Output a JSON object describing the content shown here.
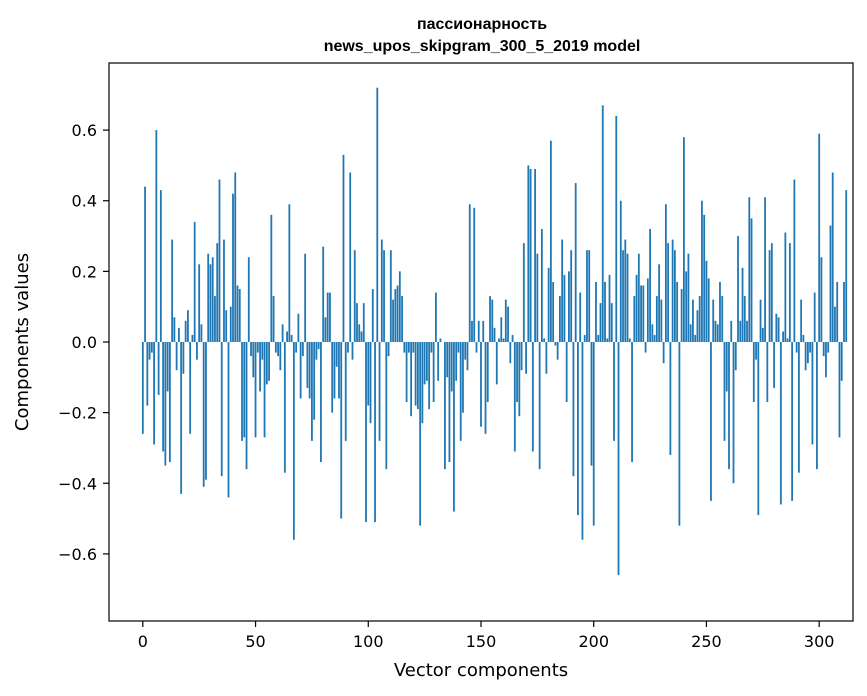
{
  "chart_data": {
    "type": "bar",
    "title": "пассионарность",
    "subtitle": "news_upos_skipgram_300_5_2019 model",
    "xlabel": "Vector components",
    "ylabel": "Components values",
    "xlim": [
      -15,
      315
    ],
    "ylim": [
      -0.79,
      0.79
    ],
    "xticks": [
      0,
      50,
      100,
      150,
      200,
      250,
      300
    ],
    "yticks": [
      -0.6,
      -0.4,
      -0.2,
      0.0,
      0.2,
      0.4,
      0.6
    ],
    "ytick_labels": [
      "−0.6",
      "−0.4",
      "−0.2",
      "0.0",
      "0.2",
      "0.4",
      "0.6"
    ],
    "grid": false,
    "bar_color": "#1f77b4",
    "values": [
      -0.26,
      0.44,
      -0.18,
      -0.05,
      -0.03,
      -0.29,
      0.6,
      -0.15,
      0.43,
      -0.31,
      -0.35,
      -0.14,
      -0.34,
      0.29,
      0.07,
      -0.08,
      0.04,
      -0.43,
      -0.09,
      0.06,
      0.09,
      -0.26,
      0.02,
      0.34,
      -0.05,
      0.22,
      0.05,
      -0.41,
      -0.39,
      0.25,
      0.22,
      0.24,
      0.13,
      0.28,
      0.46,
      -0.38,
      0.29,
      0.09,
      -0.44,
      0.1,
      0.42,
      0.48,
      0.16,
      0.15,
      -0.28,
      -0.27,
      -0.36,
      0.24,
      -0.04,
      -0.1,
      -0.27,
      -0.03,
      -0.14,
      -0.05,
      -0.27,
      -0.12,
      -0.11,
      0.36,
      0.13,
      -0.03,
      -0.04,
      -0.08,
      0.05,
      -0.37,
      0.03,
      0.39,
      0.02,
      -0.56,
      -0.03,
      0.08,
      -0.16,
      -0.04,
      0.25,
      -0.13,
      -0.16,
      -0.28,
      -0.22,
      -0.05,
      -0.02,
      -0.34,
      0.27,
      0.07,
      0.14,
      0.14,
      -0.2,
      -0.16,
      -0.07,
      -0.16,
      -0.5,
      0.53,
      -0.28,
      -0.03,
      0.48,
      -0.05,
      0.26,
      0.11,
      0.05,
      0.03,
      0.11,
      -0.51,
      -0.18,
      -0.23,
      0.15,
      -0.51,
      0.72,
      -0.28,
      0.29,
      0.26,
      -0.36,
      -0.04,
      0.26,
      0.12,
      0.15,
      0.16,
      0.2,
      0.13,
      -0.03,
      -0.17,
      -0.03,
      -0.21,
      -0.03,
      -0.18,
      -0.19,
      -0.52,
      -0.23,
      -0.12,
      -0.11,
      -0.19,
      -0.03,
      -0.17,
      0.14,
      -0.11,
      0.01,
      0.0,
      -0.36,
      -0.1,
      -0.34,
      -0.14,
      -0.48,
      -0.11,
      -0.03,
      -0.28,
      -0.2,
      -0.05,
      -0.08,
      0.39,
      0.06,
      0.38,
      -0.03,
      0.06,
      -0.24,
      0.06,
      -0.26,
      -0.17,
      0.13,
      0.12,
      0.04,
      -0.12,
      0.01,
      0.07,
      0.01,
      0.12,
      0.1,
      -0.06,
      0.02,
      -0.31,
      -0.17,
      -0.21,
      -0.08,
      0.28,
      -0.09,
      0.5,
      0.49,
      -0.31,
      0.49,
      0.25,
      -0.36,
      0.32,
      0.01,
      -0.09,
      0.21,
      0.57,
      0.17,
      -0.01,
      -0.05,
      0.13,
      0.29,
      0.19,
      -0.17,
      0.2,
      0.26,
      -0.38,
      0.45,
      -0.49,
      0.14,
      -0.56,
      0.02,
      0.26,
      0.26,
      -0.35,
      -0.52,
      0.17,
      0.02,
      0.11,
      0.67,
      0.17,
      0.01,
      0.19,
      0.11,
      -0.28,
      0.64,
      -0.66,
      0.4,
      0.26,
      0.29,
      0.25,
      0.01,
      -0.34,
      0.13,
      0.19,
      0.25,
      0.16,
      0.16,
      -0.03,
      0.18,
      0.32,
      0.05,
      0.02,
      0.13,
      0.22,
      0.12,
      -0.06,
      0.39,
      0.28,
      -0.32,
      0.29,
      0.26,
      0.17,
      -0.52,
      0.15,
      0.58,
      0.2,
      0.25,
      0.05,
      0.12,
      0.02,
      0.09,
      0.13,
      0.4,
      0.36,
      0.23,
      0.18,
      -0.45,
      0.12,
      0.06,
      0.05,
      0.17,
      0.13,
      -0.28,
      -0.14,
      -0.36,
      0.06,
      -0.4,
      -0.08,
      0.3,
      0.06,
      0.21,
      0.13,
      0.06,
      0.41,
      0.35,
      -0.17,
      -0.05,
      -0.49,
      0.12,
      0.04,
      0.41,
      -0.17,
      0.26,
      0.28,
      -0.13,
      0.08,
      0.07,
      -0.46,
      0.03,
      0.31,
      0.01,
      0.28,
      -0.45,
      0.46,
      -0.03,
      -0.37,
      0.12,
      0.02,
      -0.08,
      -0.06,
      -0.03,
      -0.29,
      0.14,
      -0.36,
      0.59,
      0.24,
      -0.04,
      -0.1,
      -0.03,
      0.33,
      0.48,
      0.1,
      0.17,
      -0.27,
      -0.11,
      0.17,
      0.43,
      0.0,
      0.0,
      0.0,
      0.0
    ]
  }
}
